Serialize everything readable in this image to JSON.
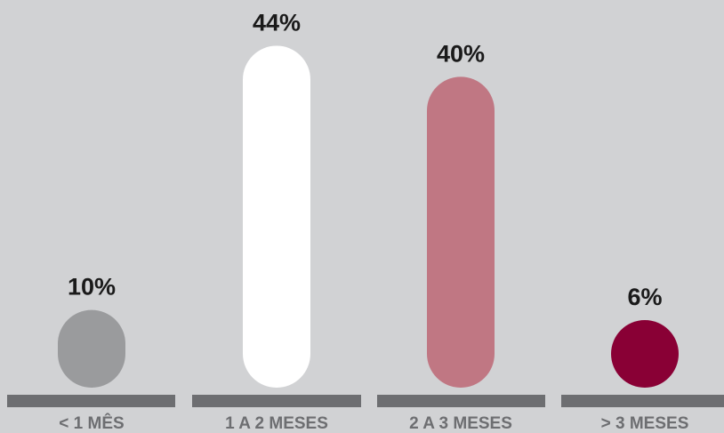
{
  "chart_data": {
    "type": "bar",
    "categories": [
      "< 1 MÊS",
      "1 A 2 MESES",
      "2 A 3 MESES",
      "> 3 MESES"
    ],
    "values": [
      10,
      44,
      40,
      6
    ],
    "value_labels": [
      "10%",
      "44%",
      "40%",
      "6%"
    ],
    "value_unit": "%",
    "colors": [
      "#9a9b9d",
      "#ffffff",
      "#c07783",
      "#890035"
    ],
    "baseline_color": "#6d6e71",
    "background": "#d1d2d4",
    "bar_style": "rounded-pill",
    "grid": false,
    "legend": "none"
  }
}
